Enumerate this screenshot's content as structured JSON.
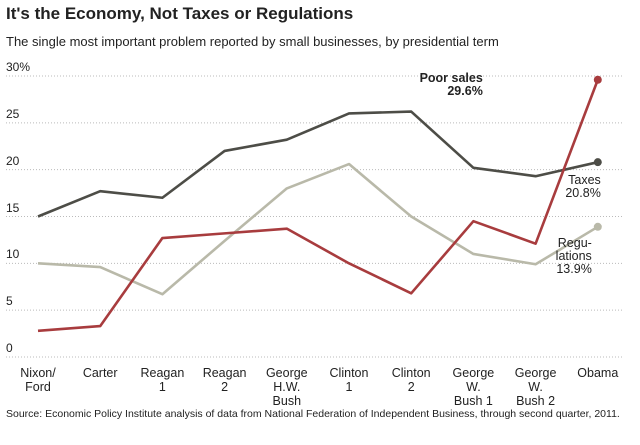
{
  "chart_data": {
    "type": "line",
    "title": "It's the Economy, Not Taxes or Regulations",
    "subtitle": "The single most important problem reported by small businesses, by presidential term",
    "source": "Source: Economic Policy Institute analysis of data from National Federation of Independent Business, through second quarter, 2011.",
    "categories": [
      "Nixon/\nFord",
      "Carter",
      "Reagan\n1",
      "Reagan\n2",
      "George\nH.W.\nBush",
      "Clinton\n1",
      "Clinton\n2",
      "George\nW.\nBush 1",
      "George\nW.\nBush 2",
      "Obama"
    ],
    "series": [
      {
        "name": "Taxes",
        "color": "#4d4d47",
        "values": [
          15.0,
          17.7,
          17.0,
          22.0,
          23.2,
          26.0,
          26.2,
          20.2,
          19.3,
          20.8
        ],
        "value_labels": [
          null,
          null,
          null,
          null,
          null,
          null,
          null,
          null,
          null,
          "20.8%"
        ]
      },
      {
        "name": "Regu-\nlations",
        "color": "#b9b9a9",
        "values": [
          10.0,
          9.6,
          6.7,
          12.4,
          18.0,
          20.6,
          15.0,
          11.0,
          9.9,
          13.9
        ],
        "value_labels": [
          null,
          null,
          null,
          null,
          null,
          null,
          null,
          null,
          null,
          "13.9%"
        ]
      },
      {
        "name": "Poor sales",
        "color": "#a83c3e",
        "values": [
          2.8,
          3.3,
          12.7,
          13.2,
          13.7,
          10.0,
          6.8,
          14.5,
          12.1,
          29.6
        ],
        "value_labels": [
          null,
          null,
          null,
          null,
          null,
          null,
          null,
          null,
          null,
          "29.6%"
        ]
      }
    ],
    "ylim": [
      0,
      30
    ],
    "yticks": [
      0,
      5,
      10,
      15,
      20,
      25,
      {
        "value": 30,
        "label": "30%"
      }
    ],
    "grid": true
  }
}
